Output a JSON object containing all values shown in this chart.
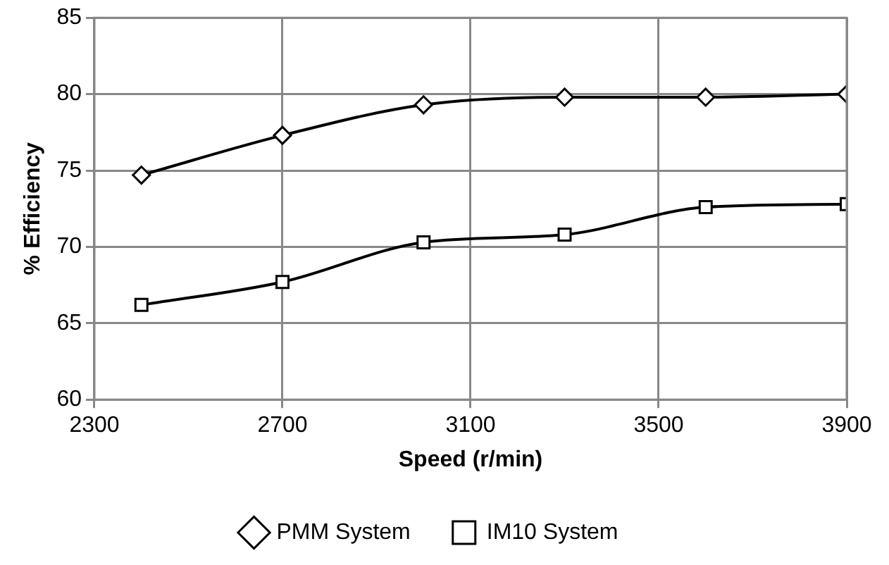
{
  "chart_data": {
    "type": "line",
    "xlabel": "Speed (r/min)",
    "ylabel": "% Efficiency",
    "x": [
      2400,
      2700,
      3000,
      3300,
      3600,
      3900
    ],
    "xlim": [
      2300,
      3900
    ],
    "xticks": [
      2300,
      2700,
      3100,
      3500,
      3900
    ],
    "ylim": [
      60,
      85
    ],
    "yticks": [
      60,
      65,
      70,
      75,
      80,
      85
    ],
    "grid": true,
    "legend": "bottom",
    "line_style": "solid",
    "series": [
      {
        "name": "PMM System",
        "color": "#000000",
        "marker": "diamond",
        "values": [
          74.7,
          77.3,
          79.3,
          79.8,
          79.8,
          80.0
        ]
      },
      {
        "name": "IM10 System",
        "color": "#000000",
        "marker": "square",
        "values": [
          66.2,
          67.7,
          70.3,
          70.8,
          72.6,
          72.8
        ]
      }
    ]
  }
}
